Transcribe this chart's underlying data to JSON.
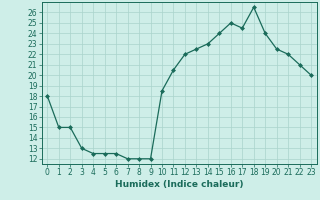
{
  "xlabel": "Humidex (Indice chaleur)",
  "ylabel": "",
  "x": [
    0,
    1,
    2,
    3,
    4,
    5,
    6,
    7,
    8,
    9,
    10,
    11,
    12,
    13,
    14,
    15,
    16,
    17,
    18,
    19,
    20,
    21,
    22,
    23
  ],
  "y": [
    18,
    15,
    15,
    13,
    12.5,
    12.5,
    12.5,
    12,
    12,
    12,
    18.5,
    20.5,
    22,
    22.5,
    23,
    24,
    25,
    24.5,
    26.5,
    24,
    22.5,
    22,
    21,
    20
  ],
  "line_color": "#1a6b5a",
  "marker": "D",
  "marker_size": 2.0,
  "bg_color": "#ceeee8",
  "grid_color": "#aad4cc",
  "ylim": [
    11.5,
    27.0
  ],
  "xlim": [
    -0.5,
    23.5
  ],
  "yticks": [
    12,
    13,
    14,
    15,
    16,
    17,
    18,
    19,
    20,
    21,
    22,
    23,
    24,
    25,
    26
  ],
  "xticks": [
    0,
    1,
    2,
    3,
    4,
    5,
    6,
    7,
    8,
    9,
    10,
    11,
    12,
    13,
    14,
    15,
    16,
    17,
    18,
    19,
    20,
    21,
    22,
    23
  ],
  "tick_fontsize": 5.5,
  "xlabel_fontsize": 6.5
}
